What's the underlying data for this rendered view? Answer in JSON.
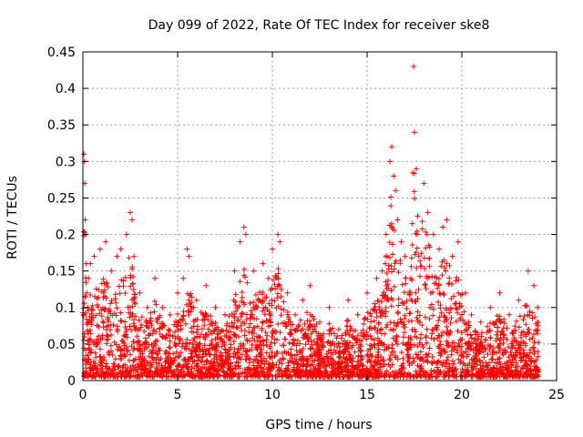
{
  "chart_data": {
    "type": "scatter",
    "title": "Day 099 of 2022, Rate Of TEC Index for receiver ske8",
    "xlabel": "GPS time / hours",
    "ylabel": "ROTI / TECUs",
    "xlim": [
      0,
      25
    ],
    "ylim": [
      0,
      0.45
    ],
    "x_ticks": [
      "0",
      "5",
      "10",
      "15",
      "20",
      "25"
    ],
    "y_ticks": [
      "0",
      "0.05",
      "0.1",
      "0.15",
      "0.2",
      "0.25",
      "0.3",
      "0.35",
      "0.4",
      "0.45"
    ],
    "grid": true,
    "marker": "+",
    "color": "#ff0000",
    "series": [
      {
        "x": [
          0.05,
          0.08,
          0.1,
          0.12,
          0.15,
          0.18,
          0.2,
          0.25,
          0.3,
          0.4,
          0.6,
          0.9,
          1.2,
          1.5,
          1.8,
          2.0,
          2.3,
          2.5,
          2.6,
          2.7,
          3.0,
          3.4,
          3.8,
          4.2,
          4.6,
          5.0,
          5.3,
          5.5,
          5.6,
          6.0,
          6.5,
          7.0,
          7.5,
          8.0,
          8.3,
          8.5,
          8.6,
          9.0,
          9.5,
          9.8,
          10.0,
          10.3,
          10.4,
          10.8,
          11.2,
          11.6,
          12.0,
          12.5,
          13.0,
          13.5,
          14.0,
          14.5,
          15.0,
          15.5,
          15.8,
          16.0,
          16.2,
          16.3,
          16.4,
          16.5,
          16.6,
          16.8,
          17.0,
          17.3,
          17.45,
          17.5,
          17.6,
          18.0,
          18.2,
          18.5,
          18.8,
          19.0,
          19.2,
          19.5,
          19.8,
          20.2,
          20.5,
          21.0,
          21.5,
          22.0,
          22.5,
          23.0,
          23.5,
          23.8,
          24.0
        ],
        "y": [
          0.31,
          0.3,
          0.27,
          0.22,
          0.2,
          0.16,
          0.12,
          0.1,
          0.14,
          0.16,
          0.17,
          0.18,
          0.19,
          0.15,
          0.17,
          0.18,
          0.2,
          0.23,
          0.22,
          0.17,
          0.12,
          0.1,
          0.14,
          0.1,
          0.09,
          0.12,
          0.14,
          0.18,
          0.17,
          0.11,
          0.13,
          0.1,
          0.09,
          0.15,
          0.19,
          0.21,
          0.2,
          0.15,
          0.16,
          0.14,
          0.18,
          0.2,
          0.19,
          0.12,
          0.09,
          0.11,
          0.13,
          0.08,
          0.1,
          0.07,
          0.11,
          0.09,
          0.12,
          0.14,
          0.15,
          0.2,
          0.3,
          0.32,
          0.28,
          0.26,
          0.22,
          0.19,
          0.17,
          0.14,
          0.43,
          0.34,
          0.29,
          0.27,
          0.23,
          0.2,
          0.18,
          0.21,
          0.22,
          0.17,
          0.19,
          0.12,
          0.09,
          0.08,
          0.1,
          0.12,
          0.09,
          0.11,
          0.15,
          0.13,
          0.1
        ]
      }
    ]
  }
}
